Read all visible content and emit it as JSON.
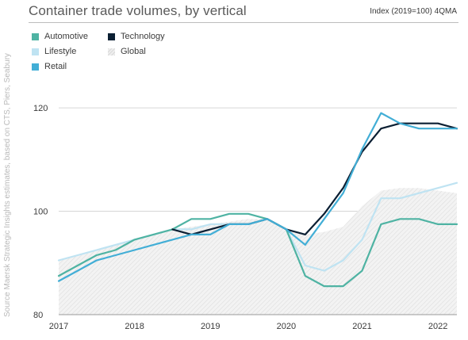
{
  "header": {
    "title": "Container trade volumes, by vertical",
    "unit": "Index (2019=100) 4QMA"
  },
  "source": "Source Maersk Strategic Insights estimates, based on CTS, Piers, Seabury",
  "colors": {
    "Automotive": "#4fb3a3",
    "Technology": "#0b1f33",
    "Lifestyle": "#bfe3f2",
    "Retail": "#42aed6",
    "Global": "#e6e6e6",
    "grid": "#d6d6d6",
    "axis": "#9a9a9a"
  },
  "legend": [
    {
      "label": "Automotive",
      "color": "#4fb3a3",
      "type": "swatch"
    },
    {
      "label": "Lifestyle",
      "color": "#bfe3f2",
      "type": "swatch"
    },
    {
      "label": "Retail",
      "color": "#42aed6",
      "type": "swatch"
    },
    {
      "label": "Technology",
      "color": "#0b1f33",
      "type": "swatch"
    },
    {
      "label": "Global",
      "color": "#e6e6e6",
      "type": "hatch"
    }
  ],
  "chart_data": {
    "type": "line",
    "title": "Container trade volumes, by vertical",
    "subtitle": "Index (2019=100) 4QMA",
    "xlabel": "",
    "ylabel": "",
    "xlim": [
      2017.0,
      2022.25
    ],
    "ylim": [
      80,
      124
    ],
    "yticks": [
      80,
      100,
      120
    ],
    "xticks": [
      {
        "value": 2017.0,
        "label": "2017"
      },
      {
        "value": 2018.0,
        "label": "2018"
      },
      {
        "value": 2019.0,
        "label": "2019"
      },
      {
        "value": 2020.0,
        "label": "2020"
      },
      {
        "value": 2021.0,
        "label": "2021"
      },
      {
        "value": 2022.0,
        "label": "2022"
      }
    ],
    "grid": "horizontal",
    "legend_position": "top-left",
    "x": [
      2017.0,
      2017.25,
      2017.5,
      2017.75,
      2018.0,
      2018.25,
      2018.5,
      2018.75,
      2019.0,
      2019.25,
      2019.5,
      2019.75,
      2020.0,
      2020.25,
      2020.5,
      2020.75,
      2021.0,
      2021.25,
      2021.5,
      2021.75,
      2022.0,
      2022.25
    ],
    "series": [
      {
        "name": "Global",
        "kind": "area",
        "values": [
          90.5,
          91.5,
          92.5,
          93.5,
          94.5,
          95.5,
          96.5,
          97.0,
          97.5,
          98.0,
          98.5,
          98.5,
          96.5,
          95.5,
          96.0,
          97.0,
          101.0,
          104.0,
          104.5,
          104.5,
          104.0,
          103.5
        ]
      },
      {
        "name": "Lifestyle",
        "kind": "line",
        "values": [
          90.5,
          91.5,
          92.5,
          93.5,
          94.5,
          95.5,
          96.5,
          96.5,
          97.5,
          97.5,
          97.5,
          98.5,
          96.5,
          89.5,
          88.5,
          90.5,
          94.5,
          102.5,
          102.5,
          103.5,
          104.5,
          105.5
        ]
      },
      {
        "name": "Automotive",
        "kind": "line",
        "values": [
          87.5,
          89.5,
          91.5,
          92.5,
          94.5,
          95.5,
          96.5,
          98.5,
          98.5,
          99.5,
          99.5,
          98.5,
          96.5,
          87.5,
          85.5,
          85.5,
          88.5,
          97.5,
          98.5,
          98.5,
          97.5,
          97.5
        ]
      },
      {
        "name": "Technology",
        "kind": "line",
        "values": [
          null,
          null,
          null,
          null,
          null,
          null,
          96.5,
          95.5,
          96.5,
          97.5,
          97.5,
          98.5,
          96.5,
          95.5,
          99.5,
          104.5,
          111.5,
          116.0,
          117.0,
          117.0,
          117.0,
          116.0
        ]
      },
      {
        "name": "Retail",
        "kind": "line",
        "values": [
          86.5,
          88.5,
          90.5,
          91.5,
          92.5,
          93.5,
          94.5,
          95.5,
          95.5,
          97.5,
          97.5,
          98.5,
          96.5,
          93.5,
          98.5,
          103.5,
          112.0,
          119.0,
          117.0,
          116.0,
          116.0,
          116.0
        ]
      }
    ]
  }
}
